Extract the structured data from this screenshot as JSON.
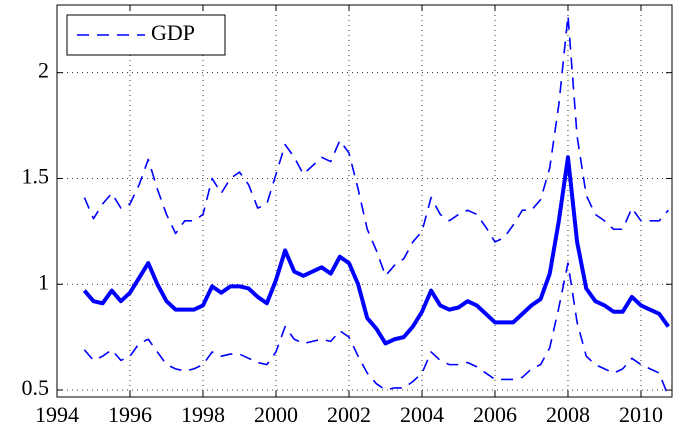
{
  "chart_data": {
    "type": "line",
    "x": [
      1994.75,
      1995,
      1995.25,
      1995.5,
      1995.75,
      1996,
      1996.25,
      1996.5,
      1996.75,
      1997,
      1997.25,
      1997.5,
      1997.75,
      1998,
      1998.25,
      1998.5,
      1998.75,
      1999,
      1999.25,
      1999.5,
      1999.75,
      2000,
      2000.25,
      2000.5,
      2000.75,
      2001,
      2001.25,
      2001.5,
      2001.75,
      2002,
      2002.25,
      2002.5,
      2002.75,
      2003,
      2003.25,
      2003.5,
      2003.75,
      2004,
      2004.25,
      2004.5,
      2004.75,
      2005,
      2005.25,
      2005.5,
      2005.75,
      2006,
      2006.25,
      2006.5,
      2006.75,
      2007,
      2007.25,
      2007.5,
      2007.75,
      2008,
      2008.25,
      2008.5,
      2008.75,
      2009,
      2009.25,
      2009.5,
      2009.75,
      2010,
      2010.25,
      2010.5,
      2010.75
    ],
    "series": [
      {
        "name": "GDP",
        "color": "#0000ff",
        "dashed": true,
        "values": [
          1.41,
          1.31,
          1.38,
          1.43,
          1.36,
          1.38,
          1.47,
          1.59,
          1.45,
          1.33,
          1.24,
          1.3,
          1.3,
          1.33,
          1.5,
          1.43,
          1.5,
          1.53,
          1.47,
          1.36,
          1.38,
          1.52,
          1.66,
          1.6,
          1.52,
          1.56,
          1.6,
          1.58,
          1.68,
          1.62,
          1.45,
          1.26,
          1.16,
          1.04,
          1.09,
          1.12,
          1.2,
          1.25,
          1.41,
          1.33,
          1.3,
          1.33,
          1.35,
          1.33,
          1.27,
          1.2,
          1.22,
          1.28,
          1.35,
          1.35,
          1.4,
          1.55,
          1.85,
          2.27,
          1.7,
          1.42,
          1.33,
          1.3,
          1.26,
          1.26,
          1.36,
          1.3,
          1.3,
          1.3,
          1.35
        ]
      },
      {
        "color": "#0000ff",
        "dashed": false,
        "values": [
          0.97,
          0.92,
          0.91,
          0.97,
          0.92,
          0.96,
          1.03,
          1.1,
          1.0,
          0.92,
          0.88,
          0.88,
          0.88,
          0.9,
          0.99,
          0.96,
          0.99,
          0.99,
          0.98,
          0.94,
          0.91,
          1.02,
          1.16,
          1.06,
          1.04,
          1.06,
          1.08,
          1.05,
          1.13,
          1.1,
          1.0,
          0.84,
          0.79,
          0.72,
          0.74,
          0.75,
          0.8,
          0.87,
          0.97,
          0.9,
          0.88,
          0.89,
          0.92,
          0.9,
          0.86,
          0.82,
          0.82,
          0.82,
          0.86,
          0.9,
          0.93,
          1.05,
          1.3,
          1.6,
          1.2,
          0.98,
          0.92,
          0.9,
          0.87,
          0.87,
          0.94,
          0.9,
          0.88,
          0.86,
          0.8
        ]
      },
      {
        "color": "#0000ff",
        "dashed": true,
        "values": [
          0.69,
          0.64,
          0.66,
          0.69,
          0.64,
          0.66,
          0.72,
          0.74,
          0.68,
          0.62,
          0.6,
          0.59,
          0.6,
          0.62,
          0.68,
          0.66,
          0.67,
          0.67,
          0.65,
          0.63,
          0.62,
          0.68,
          0.8,
          0.74,
          0.72,
          0.73,
          0.74,
          0.73,
          0.78,
          0.75,
          0.66,
          0.58,
          0.53,
          0.5,
          0.51,
          0.51,
          0.54,
          0.58,
          0.68,
          0.64,
          0.62,
          0.62,
          0.63,
          0.61,
          0.58,
          0.55,
          0.55,
          0.55,
          0.56,
          0.6,
          0.62,
          0.7,
          0.89,
          1.1,
          0.82,
          0.66,
          0.62,
          0.6,
          0.58,
          0.6,
          0.65,
          0.62,
          0.6,
          0.58,
          0.47
        ]
      }
    ],
    "xlim": [
      1994,
      2010.85
    ],
    "xticks": [
      1994,
      1996,
      1998,
      2000,
      2002,
      2004,
      2006,
      2008,
      2010
    ],
    "ylim": [
      0.467,
      2.32
    ],
    "yticks": [
      0.5,
      1,
      1.5,
      2
    ],
    "grid": true,
    "legend": "upper-left"
  }
}
